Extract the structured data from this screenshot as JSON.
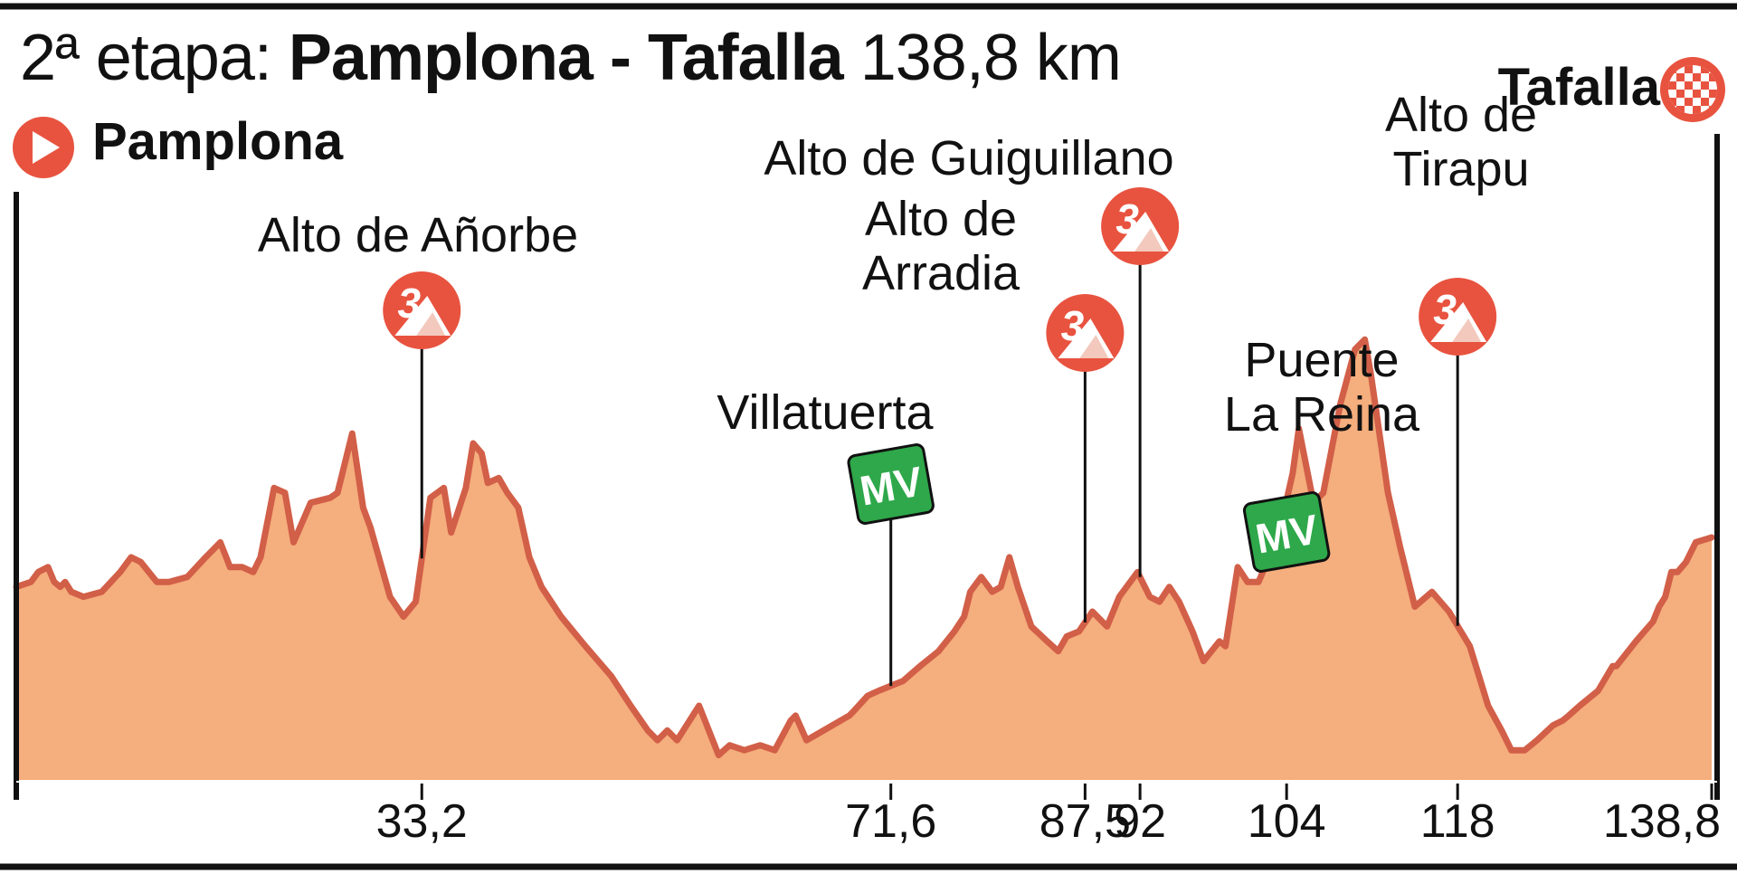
{
  "header": {
    "stage_prefix": "2ª etapa:",
    "stage_route": "Pamplona - Tafalla",
    "stage_distance": "138,8 km"
  },
  "start": {
    "name": "Pamplona",
    "icon": "start-play-icon"
  },
  "finish": {
    "name": "Tafalla",
    "icon": "checkered-flag-icon"
  },
  "colors": {
    "fill": "#f5ae7d",
    "line": "#d25f48",
    "climb_badge": "#e8533f",
    "sprint_badge": "#2ea84a",
    "text": "#111111"
  },
  "chart_data": {
    "type": "area",
    "title": "2ª etapa: Pamplona - Tafalla 138,8 km",
    "x_unit": "km",
    "xlim": [
      0,
      138.8
    ],
    "ticks": [
      {
        "km": 33.2,
        "label": "33,2"
      },
      {
        "km": 71.6,
        "label": "71,6"
      },
      {
        "km": 87.5,
        "label": "87,5"
      },
      {
        "km": 92,
        "label": "92"
      },
      {
        "km": 104,
        "label": "104"
      },
      {
        "km": 118,
        "label": "118"
      },
      {
        "km": 138.8,
        "label": "138,8"
      }
    ],
    "points": [
      {
        "lines": [
          "Alto de Añorbe"
        ],
        "km": 33.2,
        "kind": "climb",
        "category": "3"
      },
      {
        "lines": [
          "Villatuerta"
        ],
        "km": 71.6,
        "kind": "sprint",
        "badge": "MV"
      },
      {
        "lines": [
          "Alto de",
          "Arradia"
        ],
        "km": 87.5,
        "kind": "climb",
        "category": "3"
      },
      {
        "lines": [
          "Alto de Guiguillano"
        ],
        "km": 92,
        "kind": "climb",
        "category": "3"
      },
      {
        "lines": [
          "Puente",
          "La Reina"
        ],
        "km": 104,
        "kind": "sprint",
        "badge": "MV"
      },
      {
        "lines": [
          "Alto de",
          "Tirapu"
        ],
        "km": 118,
        "kind": "climb",
        "category": "3"
      }
    ],
    "profile": [
      [
        0,
        0.39
      ],
      [
        1.2,
        0.4
      ],
      [
        1.8,
        0.42
      ],
      [
        2.6,
        0.43
      ],
      [
        3.1,
        0.4
      ],
      [
        3.6,
        0.39
      ],
      [
        4.0,
        0.4
      ],
      [
        4.5,
        0.38
      ],
      [
        5.5,
        0.37
      ],
      [
        7.0,
        0.38
      ],
      [
        8.5,
        0.42
      ],
      [
        9.4,
        0.45
      ],
      [
        10.2,
        0.44
      ],
      [
        11.5,
        0.4
      ],
      [
        12.5,
        0.4
      ],
      [
        14.0,
        0.41
      ],
      [
        15.5,
        0.45
      ],
      [
        16.7,
        0.48
      ],
      [
        17.5,
        0.43
      ],
      [
        18.5,
        0.43
      ],
      [
        19.4,
        0.42
      ],
      [
        20.0,
        0.45
      ],
      [
        21.1,
        0.59
      ],
      [
        22.0,
        0.58
      ],
      [
        22.7,
        0.48
      ],
      [
        24.1,
        0.56
      ],
      [
        25.7,
        0.57
      ],
      [
        26.3,
        0.58
      ],
      [
        27.5,
        0.7
      ],
      [
        28.4,
        0.55
      ],
      [
        29.0,
        0.51
      ],
      [
        30.6,
        0.37
      ],
      [
        31.7,
        0.33
      ],
      [
        32.7,
        0.36
      ],
      [
        33.9,
        0.57
      ],
      [
        35.0,
        0.59
      ],
      [
        35.6,
        0.5
      ],
      [
        36.8,
        0.59
      ],
      [
        37.4,
        0.68
      ],
      [
        38.1,
        0.66
      ],
      [
        38.6,
        0.6
      ],
      [
        39.5,
        0.61
      ],
      [
        40.2,
        0.58
      ],
      [
        41.1,
        0.55
      ],
      [
        42.0,
        0.45
      ],
      [
        43.0,
        0.39
      ],
      [
        44.6,
        0.33
      ],
      [
        46.6,
        0.27
      ],
      [
        48.7,
        0.21
      ],
      [
        50.3,
        0.15
      ],
      [
        51.7,
        0.1
      ],
      [
        52.5,
        0.08
      ],
      [
        53.3,
        0.1
      ],
      [
        54.1,
        0.08
      ],
      [
        55.9,
        0.15
      ],
      [
        57.5,
        0.05
      ],
      [
        58.4,
        0.07
      ],
      [
        59.6,
        0.06
      ],
      [
        60.9,
        0.07
      ],
      [
        62.1,
        0.06
      ],
      [
        63.4,
        0.12
      ],
      [
        63.8,
        0.13
      ],
      [
        64.7,
        0.08
      ],
      [
        66.1,
        0.1
      ],
      [
        68.2,
        0.13
      ],
      [
        68.6,
        0.14
      ],
      [
        69.7,
        0.17
      ],
      [
        70.6,
        0.18
      ],
      [
        72.6,
        0.2
      ],
      [
        74.0,
        0.23
      ],
      [
        75.5,
        0.26
      ],
      [
        76.8,
        0.3
      ],
      [
        77.6,
        0.33
      ],
      [
        78.1,
        0.38
      ],
      [
        79.0,
        0.41
      ],
      [
        79.9,
        0.38
      ],
      [
        80.6,
        0.39
      ],
      [
        81.3,
        0.45
      ],
      [
        82.0,
        0.39
      ],
      [
        83.1,
        0.31
      ],
      [
        84.4,
        0.28
      ],
      [
        85.3,
        0.26
      ],
      [
        86.0,
        0.29
      ],
      [
        87.0,
        0.3
      ],
      [
        88.1,
        0.34
      ],
      [
        89.3,
        0.31
      ],
      [
        90.3,
        0.37
      ],
      [
        91.8,
        0.42
      ],
      [
        92.8,
        0.37
      ],
      [
        93.6,
        0.36
      ],
      [
        94.4,
        0.39
      ],
      [
        95.2,
        0.36
      ],
      [
        96.3,
        0.3
      ],
      [
        97.2,
        0.24
      ],
      [
        98.5,
        0.28
      ],
      [
        99.0,
        0.27
      ],
      [
        100.0,
        0.43
      ],
      [
        100.8,
        0.4
      ],
      [
        101.7,
        0.4
      ],
      [
        102.4,
        0.44
      ],
      [
        103.4,
        0.5
      ],
      [
        104.5,
        0.62
      ],
      [
        105.0,
        0.71
      ],
      [
        106.2,
        0.56
      ],
      [
        107.0,
        0.58
      ],
      [
        108.4,
        0.76
      ],
      [
        109.6,
        0.87
      ],
      [
        110.4,
        0.89
      ],
      [
        110.9,
        0.82
      ],
      [
        112.3,
        0.58
      ],
      [
        113.3,
        0.47
      ],
      [
        114.5,
        0.35
      ],
      [
        115.9,
        0.38
      ],
      [
        117.3,
        0.34
      ],
      [
        119.0,
        0.27
      ],
      [
        120.5,
        0.15
      ],
      [
        121.6,
        0.1
      ],
      [
        122.4,
        0.06
      ],
      [
        123.5,
        0.06
      ],
      [
        124.5,
        0.08
      ],
      [
        125.8,
        0.11
      ],
      [
        126.6,
        0.12
      ],
      [
        127.1,
        0.13
      ],
      [
        128.0,
        0.15
      ],
      [
        129.5,
        0.18
      ],
      [
        130.7,
        0.23
      ],
      [
        131.0,
        0.23
      ],
      [
        132.6,
        0.28
      ],
      [
        133.3,
        0.3
      ],
      [
        134.0,
        0.32
      ],
      [
        134.5,
        0.35
      ],
      [
        135.0,
        0.37
      ],
      [
        135.5,
        0.42
      ],
      [
        136.0,
        0.42
      ],
      [
        136.7,
        0.44
      ],
      [
        137.5,
        0.48
      ],
      [
        138.8,
        0.49
      ]
    ]
  }
}
